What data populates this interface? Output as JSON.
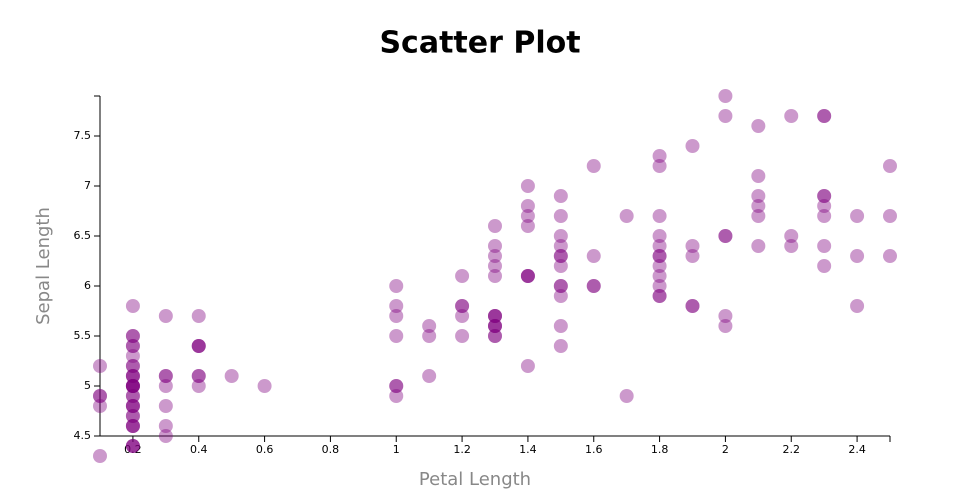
{
  "chart_data": {
    "type": "scatter",
    "title": "Scatter Plot",
    "x_label": "Petal Length",
    "y_label": "Sepal Length",
    "x": [
      0.2,
      0.2,
      0.2,
      0.2,
      0.2,
      0.4,
      0.3,
      0.2,
      0.2,
      0.1,
      0.2,
      0.2,
      0.1,
      0.1,
      0.2,
      0.4,
      0.4,
      0.3,
      0.3,
      0.3,
      0.2,
      0.4,
      0.2,
      0.5,
      0.2,
      0.2,
      0.4,
      0.2,
      0.2,
      0.2,
      0.2,
      0.4,
      0.1,
      0.2,
      0.2,
      0.2,
      0.2,
      0.1,
      0.2,
      0.2,
      0.3,
      0.3,
      0.2,
      0.6,
      0.4,
      0.3,
      0.2,
      0.2,
      0.2,
      0.2,
      1.4,
      1.5,
      1.5,
      1.3,
      1.5,
      1.3,
      1.6,
      1.0,
      1.3,
      1.4,
      1.0,
      1.5,
      1.0,
      1.4,
      1.3,
      1.4,
      1.5,
      1.0,
      1.5,
      1.1,
      1.8,
      1.3,
      1.5,
      1.2,
      1.3,
      1.4,
      1.4,
      1.7,
      1.5,
      1.0,
      1.1,
      1.0,
      1.2,
      1.6,
      1.5,
      1.6,
      1.5,
      1.3,
      1.3,
      1.3,
      1.2,
      1.4,
      1.2,
      1.0,
      1.3,
      1.2,
      1.3,
      1.3,
      1.1,
      1.3,
      2.5,
      1.9,
      2.1,
      1.8,
      2.2,
      2.1,
      1.7,
      1.8,
      1.8,
      2.5,
      2.0,
      1.9,
      2.1,
      2.0,
      2.4,
      2.3,
      1.8,
      2.2,
      2.3,
      1.5,
      2.3,
      2.0,
      2.0,
      1.8,
      2.1,
      1.8,
      1.8,
      1.8,
      2.1,
      1.6,
      1.9,
      2.0,
      2.2,
      1.5,
      1.4,
      2.3,
      2.4,
      1.8,
      1.8,
      2.1,
      2.4,
      2.3,
      1.9,
      2.3,
      2.5,
      2.3,
      1.9,
      2.0,
      2.3,
      1.8
    ],
    "y": [
      5.1,
      4.9,
      4.7,
      4.6,
      5.0,
      5.4,
      4.6,
      5.0,
      4.4,
      4.9,
      5.4,
      4.8,
      4.8,
      4.3,
      5.8,
      5.7,
      5.4,
      5.1,
      5.7,
      5.1,
      5.4,
      5.1,
      4.6,
      5.1,
      4.8,
      5.0,
      5.0,
      5.2,
      5.2,
      4.7,
      4.8,
      5.4,
      5.2,
      5.5,
      4.9,
      5.0,
      5.5,
      4.9,
      4.4,
      5.1,
      5.0,
      4.5,
      4.4,
      5.0,
      5.1,
      4.8,
      5.1,
      4.6,
      5.3,
      5.0,
      7.0,
      6.4,
      6.9,
      5.5,
      6.5,
      5.7,
      6.3,
      4.9,
      6.6,
      5.2,
      5.0,
      5.9,
      6.0,
      6.1,
      5.6,
      6.7,
      5.6,
      5.8,
      6.2,
      5.6,
      5.9,
      6.1,
      6.3,
      6.1,
      6.4,
      6.6,
      6.8,
      6.7,
      6.0,
      5.7,
      5.5,
      5.5,
      5.8,
      6.0,
      5.4,
      6.0,
      6.7,
      6.3,
      5.6,
      5.5,
      5.5,
      6.1,
      5.8,
      5.0,
      5.6,
      5.7,
      5.7,
      6.2,
      5.1,
      5.7,
      6.3,
      5.8,
      7.1,
      6.3,
      6.5,
      7.6,
      4.9,
      7.3,
      6.7,
      7.2,
      6.5,
      6.4,
      6.8,
      5.7,
      5.8,
      6.4,
      6.5,
      7.7,
      7.7,
      6.0,
      6.9,
      5.6,
      7.7,
      6.3,
      6.7,
      7.2,
      6.2,
      6.1,
      6.4,
      7.2,
      7.4,
      7.9,
      6.4,
      6.3,
      6.1,
      7.7,
      6.3,
      6.4,
      6.0,
      6.9,
      6.7,
      6.9,
      5.8,
      6.8,
      6.7,
      6.7,
      6.3,
      6.5,
      6.2,
      5.9
    ],
    "color": "#800080",
    "xlim": [
      0.1,
      2.5
    ],
    "xticks": [
      0.2,
      0.4,
      0.6,
      0.8,
      1.0,
      1.2,
      1.4,
      1.6,
      1.8,
      2.0,
      2.2,
      2.4
    ],
    "ylim": [
      4.5,
      7.9
    ],
    "yticks": [
      4.5,
      5.0,
      5.5,
      6.0,
      6.5,
      7.0,
      7.5
    ]
  }
}
